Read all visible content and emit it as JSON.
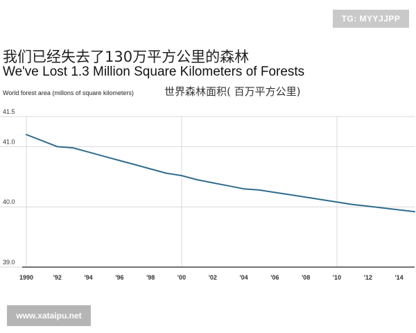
{
  "tag": "TG: MYYJJPP",
  "title_cn": "我们已经失去了130万平方公里的森林",
  "title_en": "We've Lost 1.3 Million Square Kilometers of Forests",
  "subtitle_en": "World forest area (millons of square kilometers)",
  "subtitle_cn": "世界森林面积( 百万平方公里)",
  "watermark": "www.xataipu.net",
  "colors": {
    "line": "#2f6b8e",
    "grid": "#d8d8d8",
    "axis": "#444444"
  },
  "chart_data": {
    "type": "line",
    "title": "We've Lost 1.3 Million Square Kilometers of Forests",
    "ylabel": "World forest area (millons of square kilometers)",
    "xlim": [
      1990,
      2015
    ],
    "ylim": [
      39.0,
      41.5
    ],
    "yticks": [
      39.0,
      40.0,
      41.0,
      41.5
    ],
    "ytick_labels": [
      "39.0",
      "40.0",
      "41.0",
      "41.5"
    ],
    "xticks": [
      1990,
      1992,
      1994,
      1996,
      1998,
      2000,
      2002,
      2004,
      2006,
      2008,
      2010,
      2012,
      2014
    ],
    "xtick_labels": [
      "1990",
      "'92",
      "'94",
      "'96",
      "'98",
      "'00",
      "'02",
      "'04",
      "'06",
      "'08",
      "'10",
      "'12",
      "'14"
    ],
    "vertical_gridlines": [
      1990,
      2000,
      2010
    ],
    "grid": true,
    "series": [
      {
        "x": [
          1990,
          1991,
          1992,
          1993,
          1994,
          1995,
          1996,
          1997,
          1998,
          1999,
          2000,
          2001,
          2002,
          2003,
          2004,
          2005,
          2006,
          2007,
          2008,
          2009,
          2010,
          2011,
          2012,
          2013,
          2014,
          2015
        ],
        "values": [
          41.2,
          41.1,
          41.0,
          40.98,
          40.91,
          40.84,
          40.77,
          40.7,
          40.63,
          40.56,
          40.52,
          40.45,
          40.4,
          40.35,
          40.3,
          40.28,
          40.24,
          40.2,
          40.16,
          40.12,
          40.08,
          40.04,
          40.01,
          39.98,
          39.95,
          39.92
        ]
      }
    ]
  }
}
